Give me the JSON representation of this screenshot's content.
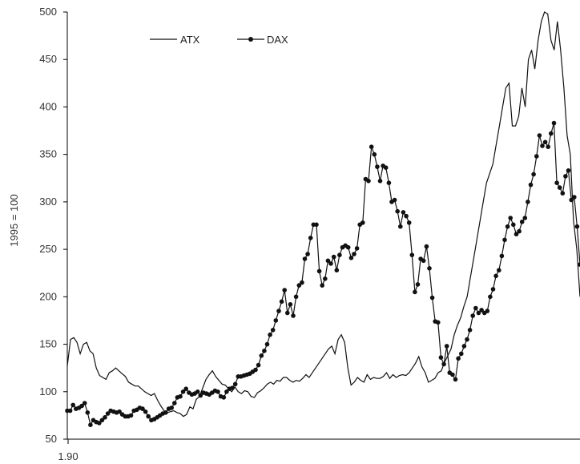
{
  "chart_data": {
    "type": "line",
    "title": "",
    "xlabel": "",
    "ylabel": "1995 = 100",
    "ylim": [
      50,
      500
    ],
    "yticks": [
      50,
      100,
      150,
      200,
      250,
      300,
      350,
      400,
      450,
      500
    ],
    "xtick_labels": [
      "1.90"
    ],
    "grid": false,
    "legend_position": "top-left",
    "x_index_range": [
      0,
      143
    ],
    "series": [
      {
        "name": "ATX",
        "marker": "none",
        "color": "#111111",
        "values": [
          127,
          155,
          157,
          152,
          140,
          150,
          152,
          143,
          140,
          125,
          117,
          115,
          113,
          120,
          122,
          125,
          122,
          119,
          116,
          110,
          108,
          106,
          106,
          103,
          100,
          98,
          96,
          98,
          91,
          85,
          80,
          78,
          79,
          80,
          78,
          77,
          74,
          76,
          84,
          82,
          92,
          95,
          104,
          113,
          118,
          122,
          116,
          112,
          108,
          107,
          103,
          100,
          105,
          100,
          98,
          101,
          100,
          95,
          94,
          99,
          101,
          104,
          108,
          110,
          108,
          112,
          111,
          115,
          115,
          112,
          110,
          112,
          111,
          114,
          118,
          115,
          120,
          125,
          130,
          135,
          140,
          145,
          148,
          140,
          155,
          160,
          152,
          125,
          107,
          110,
          115,
          112,
          110,
          118,
          113,
          115,
          114,
          114,
          116,
          120,
          114,
          118,
          115,
          117,
          118,
          117,
          120,
          125,
          130,
          137,
          126,
          120,
          110,
          112,
          114,
          120,
          122,
          131,
          138,
          145,
          160,
          170,
          178,
          190,
          200,
          220,
          240,
          260,
          280,
          300,
          320,
          330,
          340,
          360,
          380,
          400,
          420,
          425,
          380,
          380,
          390,
          420,
          400,
          450,
          460,
          440,
          470,
          490,
          500,
          498,
          470,
          460,
          490,
          460,
          420,
          370,
          350,
          280,
          250,
          200
        ],
        "x_index_scale": 0.9
      },
      {
        "name": "DAX",
        "marker": "circle",
        "color": "#111111",
        "values": [
          80,
          80,
          86,
          82,
          83,
          85,
          88,
          78,
          65,
          70,
          68,
          67,
          70,
          73,
          77,
          80,
          79,
          78,
          79,
          76,
          74,
          74,
          75,
          80,
          81,
          83,
          82,
          79,
          74,
          70,
          71,
          73,
          75,
          77,
          78,
          82,
          83,
          88,
          94,
          95,
          100,
          103,
          99,
          97,
          98,
          100,
          96,
          99,
          98,
          97,
          99,
          101,
          100,
          95,
          94,
          100,
          103,
          104,
          108,
          116,
          116,
          117,
          118,
          119,
          121,
          123,
          128,
          138,
          143,
          150,
          160,
          165,
          175,
          185,
          195,
          207,
          183,
          192,
          180,
          200,
          212,
          215,
          240,
          245,
          262,
          276,
          276,
          227,
          212,
          219,
          238,
          235,
          242,
          228,
          244,
          252,
          254,
          252,
          241,
          245,
          251,
          276,
          278,
          324,
          322,
          358,
          350,
          337,
          322,
          338,
          336,
          320,
          300,
          302,
          290,
          274,
          289,
          285,
          278,
          244,
          205,
          213,
          240,
          238,
          253,
          230,
          199,
          174,
          173,
          136,
          129,
          148,
          120,
          118,
          113,
          135,
          140,
          148,
          155,
          165,
          180,
          188,
          183,
          186,
          183,
          185,
          200,
          208,
          222,
          228,
          243,
          260,
          274,
          283,
          276,
          266,
          269,
          279,
          283,
          300,
          318,
          329,
          348,
          370,
          359,
          363,
          358,
          372,
          383,
          320,
          315,
          309,
          327,
          333,
          302,
          305,
          274,
          234
        ],
        "x_index_scale": 0.8
      }
    ]
  }
}
